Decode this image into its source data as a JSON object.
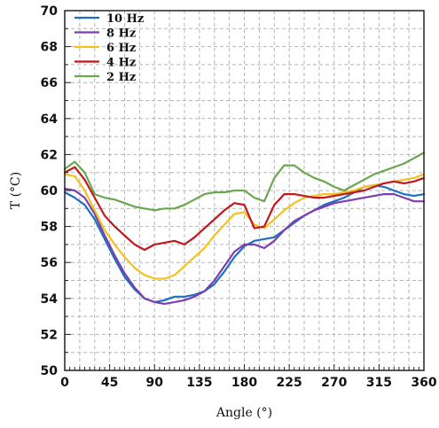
{
  "chart_data": {
    "type": "line",
    "xlabel": "Angle (°)",
    "ylabel": "T (°C)",
    "xlim": [
      0,
      360
    ],
    "ylim": [
      50,
      70
    ],
    "xticks": [
      0,
      45,
      90,
      135,
      180,
      225,
      270,
      315,
      360
    ],
    "yticks": [
      50,
      52,
      54,
      56,
      58,
      60,
      62,
      64,
      66,
      68,
      70
    ],
    "grid": true,
    "legend": "top-left",
    "series": [
      {
        "name": "10 Hz",
        "color": "#1f6fc1",
        "x": [
          0,
          10,
          20,
          30,
          40,
          50,
          60,
          70,
          80,
          90,
          100,
          110,
          120,
          130,
          140,
          150,
          160,
          170,
          180,
          190,
          200,
          210,
          220,
          230,
          240,
          250,
          260,
          270,
          280,
          290,
          300,
          310,
          320,
          330,
          340,
          350,
          360
        ],
        "y": [
          59.9,
          59.6,
          59.2,
          58.4,
          57.3,
          56.2,
          55.2,
          54.5,
          54.0,
          53.8,
          53.9,
          54.1,
          54.1,
          54.2,
          54.4,
          54.8,
          55.5,
          56.3,
          56.9,
          57.2,
          57.3,
          57.4,
          57.8,
          58.2,
          58.6,
          58.9,
          59.2,
          59.4,
          59.6,
          59.9,
          60.2,
          60.3,
          60.2,
          60.0,
          59.8,
          59.7,
          59.8
        ]
      },
      {
        "name": "8 Hz",
        "color": "#7b3fae",
        "x": [
          0,
          10,
          20,
          30,
          40,
          50,
          60,
          70,
          80,
          90,
          100,
          110,
          120,
          130,
          140,
          150,
          160,
          170,
          180,
          190,
          200,
          210,
          220,
          230,
          240,
          250,
          260,
          270,
          280,
          290,
          300,
          310,
          320,
          330,
          340,
          350,
          360
        ],
        "y": [
          60.1,
          60.0,
          59.6,
          58.7,
          57.5,
          56.4,
          55.4,
          54.6,
          54.0,
          53.8,
          53.7,
          53.8,
          53.9,
          54.1,
          54.4,
          55.0,
          55.8,
          56.6,
          57.0,
          57.0,
          56.8,
          57.2,
          57.8,
          58.3,
          58.6,
          58.9,
          59.1,
          59.3,
          59.4,
          59.5,
          59.6,
          59.7,
          59.8,
          59.8,
          59.6,
          59.4,
          59.4
        ]
      },
      {
        "name": "6 Hz",
        "color": "#f4c21e",
        "x": [
          0,
          10,
          20,
          30,
          40,
          50,
          60,
          70,
          80,
          90,
          100,
          110,
          120,
          130,
          140,
          150,
          160,
          170,
          180,
          190,
          200,
          210,
          220,
          230,
          240,
          250,
          260,
          270,
          280,
          290,
          300,
          310,
          320,
          330,
          340,
          350,
          360
        ],
        "y": [
          60.9,
          60.8,
          60.0,
          58.9,
          57.8,
          57.0,
          56.3,
          55.7,
          55.3,
          55.1,
          55.1,
          55.3,
          55.8,
          56.3,
          56.8,
          57.5,
          58.1,
          58.7,
          58.8,
          58.1,
          57.9,
          58.4,
          58.9,
          59.3,
          59.6,
          59.7,
          59.8,
          59.8,
          59.9,
          60.0,
          60.2,
          60.3,
          60.4,
          60.5,
          60.6,
          60.7,
          60.9
        ]
      },
      {
        "name": "4 Hz",
        "color": "#c0181f",
        "x": [
          0,
          10,
          20,
          30,
          40,
          50,
          60,
          70,
          80,
          90,
          100,
          110,
          120,
          130,
          140,
          150,
          160,
          170,
          180,
          190,
          200,
          210,
          220,
          230,
          240,
          250,
          260,
          270,
          280,
          290,
          300,
          310,
          320,
          330,
          340,
          350,
          360
        ],
        "y": [
          61.0,
          61.3,
          60.6,
          59.6,
          58.6,
          58.0,
          57.5,
          57.0,
          56.7,
          57.0,
          57.1,
          57.2,
          57.0,
          57.4,
          57.9,
          58.4,
          58.9,
          59.3,
          59.2,
          57.9,
          58.0,
          59.2,
          59.8,
          59.8,
          59.7,
          59.6,
          59.6,
          59.7,
          59.8,
          59.9,
          60.0,
          60.2,
          60.4,
          60.5,
          60.4,
          60.5,
          60.7
        ]
      },
      {
        "name": "2 Hz",
        "color": "#6aa84f",
        "x": [
          0,
          10,
          20,
          30,
          40,
          50,
          60,
          70,
          80,
          90,
          100,
          110,
          120,
          130,
          140,
          150,
          160,
          170,
          180,
          190,
          200,
          210,
          220,
          230,
          240,
          250,
          260,
          270,
          280,
          290,
          300,
          310,
          320,
          330,
          340,
          350,
          360
        ],
        "y": [
          61.2,
          61.6,
          61.0,
          59.8,
          59.6,
          59.5,
          59.3,
          59.1,
          59.0,
          58.9,
          59.0,
          59.0,
          59.2,
          59.5,
          59.8,
          59.9,
          59.9,
          60.0,
          60.0,
          59.6,
          59.4,
          60.7,
          61.4,
          61.4,
          61.0,
          60.7,
          60.5,
          60.2,
          60.0,
          60.3,
          60.6,
          60.9,
          61.1,
          61.3,
          61.5,
          61.8,
          62.1
        ]
      }
    ]
  }
}
